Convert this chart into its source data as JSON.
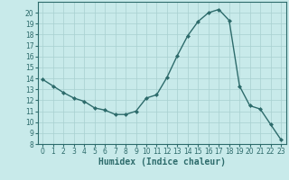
{
  "x": [
    0,
    1,
    2,
    3,
    4,
    5,
    6,
    7,
    8,
    9,
    10,
    11,
    12,
    13,
    14,
    15,
    16,
    17,
    18,
    19,
    20,
    21,
    22,
    23
  ],
  "y": [
    13.9,
    13.3,
    12.7,
    12.2,
    11.9,
    11.3,
    11.1,
    10.7,
    10.7,
    11.0,
    12.2,
    12.5,
    14.1,
    16.1,
    17.9,
    19.2,
    20.0,
    20.3,
    19.3,
    13.3,
    11.5,
    11.2,
    9.8,
    8.4
  ],
  "line_color": "#2d6b6b",
  "marker": "D",
  "marker_size": 2.0,
  "line_width": 1.0,
  "xlabel": "Humidex (Indice chaleur)",
  "xlim": [
    -0.5,
    23.5
  ],
  "ylim": [
    8,
    21
  ],
  "yticks": [
    8,
    9,
    10,
    11,
    12,
    13,
    14,
    15,
    16,
    17,
    18,
    19,
    20
  ],
  "xticks": [
    0,
    1,
    2,
    3,
    4,
    5,
    6,
    7,
    8,
    9,
    10,
    11,
    12,
    13,
    14,
    15,
    16,
    17,
    18,
    19,
    20,
    21,
    22,
    23
  ],
  "background_color": "#c8eaea",
  "grid_color": "#a8d0d0",
  "tick_label_fontsize": 5.5,
  "xlabel_fontsize": 7.0
}
